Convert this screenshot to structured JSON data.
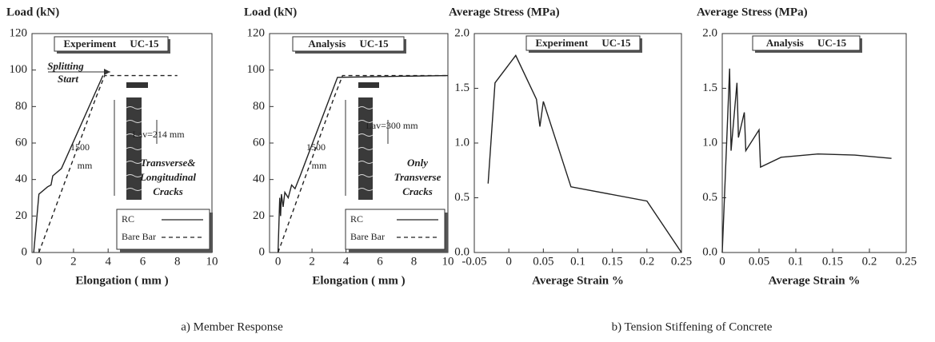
{
  "chart_data": [
    {
      "type": "line",
      "title": "Load (kN)",
      "xlabel": "Elongation ( mm )",
      "box_label": "Experiment UC-15",
      "xlim": [
        -0.4,
        10
      ],
      "xticks": [
        0,
        2,
        4,
        6,
        8,
        10
      ],
      "ylim": [
        0,
        120
      ],
      "yticks": [
        0,
        20,
        40,
        60,
        80,
        100,
        120
      ],
      "legend": "lower right",
      "series": [
        {
          "name": "RC",
          "color": "#222",
          "dash": false,
          "x": [
            -0.3,
            0,
            0.5,
            0.7,
            0.8,
            1.3,
            3.7
          ],
          "values": [
            0,
            32,
            36,
            37,
            42,
            46,
            97
          ]
        },
        {
          "name": "Bare Bar",
          "color": "#222",
          "dash": true,
          "x": [
            0,
            3.3,
            3.8,
            8
          ],
          "values": [
            0,
            85,
            97,
            97
          ]
        }
      ],
      "annotations": [
        "Splitting",
        "Start",
        "1500",
        "mm",
        "Lav=214 mm",
        "Transverse&",
        "Longitudinal",
        "Cracks"
      ]
    },
    {
      "type": "line",
      "title": "Load (kN)",
      "xlabel": "Elongation ( mm )",
      "box_label": "Analysis UC-15",
      "xlim": [
        -0.5,
        10
      ],
      "xticks": [
        0,
        2,
        4,
        6,
        8,
        10
      ],
      "ylim": [
        0,
        120
      ],
      "yticks": [
        0,
        20,
        40,
        60,
        80,
        100,
        120
      ],
      "legend": "lower right",
      "series": [
        {
          "name": "RC",
          "color": "#222",
          "dash": false,
          "x": [
            0,
            0.1,
            0.15,
            0.2,
            0.3,
            0.4,
            0.6,
            0.8,
            1,
            1.3,
            3.5,
            10
          ],
          "values": [
            0,
            30,
            20,
            32,
            25,
            33,
            30,
            37,
            35,
            42,
            96,
            97
          ]
        },
        {
          "name": "Bare Bar",
          "color": "#222",
          "dash": true,
          "x": [
            0,
            3.3,
            3.8,
            10
          ],
          "values": [
            0,
            85,
            97,
            97
          ]
        }
      ],
      "annotations": [
        "1500",
        "mm",
        "Lav=300 mm",
        "Only",
        "Transverse",
        "Cracks"
      ]
    },
    {
      "type": "line",
      "title": "Average Stress (MPa)",
      "xlabel": "Average Strain %",
      "box_label": "Experiment UC-15",
      "xlim": [
        -0.05,
        0.25
      ],
      "xticks": [
        -0.05,
        0,
        0.05,
        0.1,
        0.15,
        0.2,
        0.25
      ],
      "ylim": [
        0,
        2
      ],
      "yticks": [
        {
          "value": 0,
          "label": "0.0"
        },
        0.5,
        {
          "value": 1,
          "label": "1.0"
        },
        1.5,
        {
          "value": 2,
          "label": "2.0"
        }
      ],
      "series": [
        {
          "color": "#222",
          "dash": false,
          "x": [
            -0.03,
            -0.02,
            0.01,
            0.04,
            0.045,
            0.05,
            0.09,
            0.2,
            0.25
          ],
          "values": [
            0.63,
            1.55,
            1.8,
            1.4,
            1.15,
            1.38,
            0.6,
            0.47,
            0
          ]
        }
      ]
    },
    {
      "type": "line",
      "title": "Average Stress (MPa)",
      "xlabel": "Average Strain %",
      "box_label": "Analysis UC-15",
      "xlim": [
        0,
        0.25
      ],
      "xticks": [
        0,
        0.05,
        0.1,
        0.15,
        0.2,
        0.25
      ],
      "ylim": [
        0,
        2
      ],
      "yticks": [
        {
          "value": 0,
          "label": "0.0"
        },
        0.5,
        {
          "value": 1,
          "label": "1.0"
        },
        1.5,
        {
          "value": 2,
          "label": "2.0"
        }
      ],
      "series": [
        {
          "color": "#222",
          "dash": false,
          "x": [
            0,
            0.01,
            0.012,
            0.02,
            0.022,
            0.03,
            0.032,
            0.05,
            0.052,
            0.08,
            0.13,
            0.18,
            0.23
          ],
          "values": [
            0,
            1.68,
            0.93,
            1.55,
            1.05,
            1.28,
            0.93,
            1.12,
            0.78,
            0.87,
            0.9,
            0.89,
            0.86
          ]
        }
      ]
    }
  ],
  "captions": [
    "a) Member Response",
    "b) Tension Stiffening of Concrete"
  ]
}
